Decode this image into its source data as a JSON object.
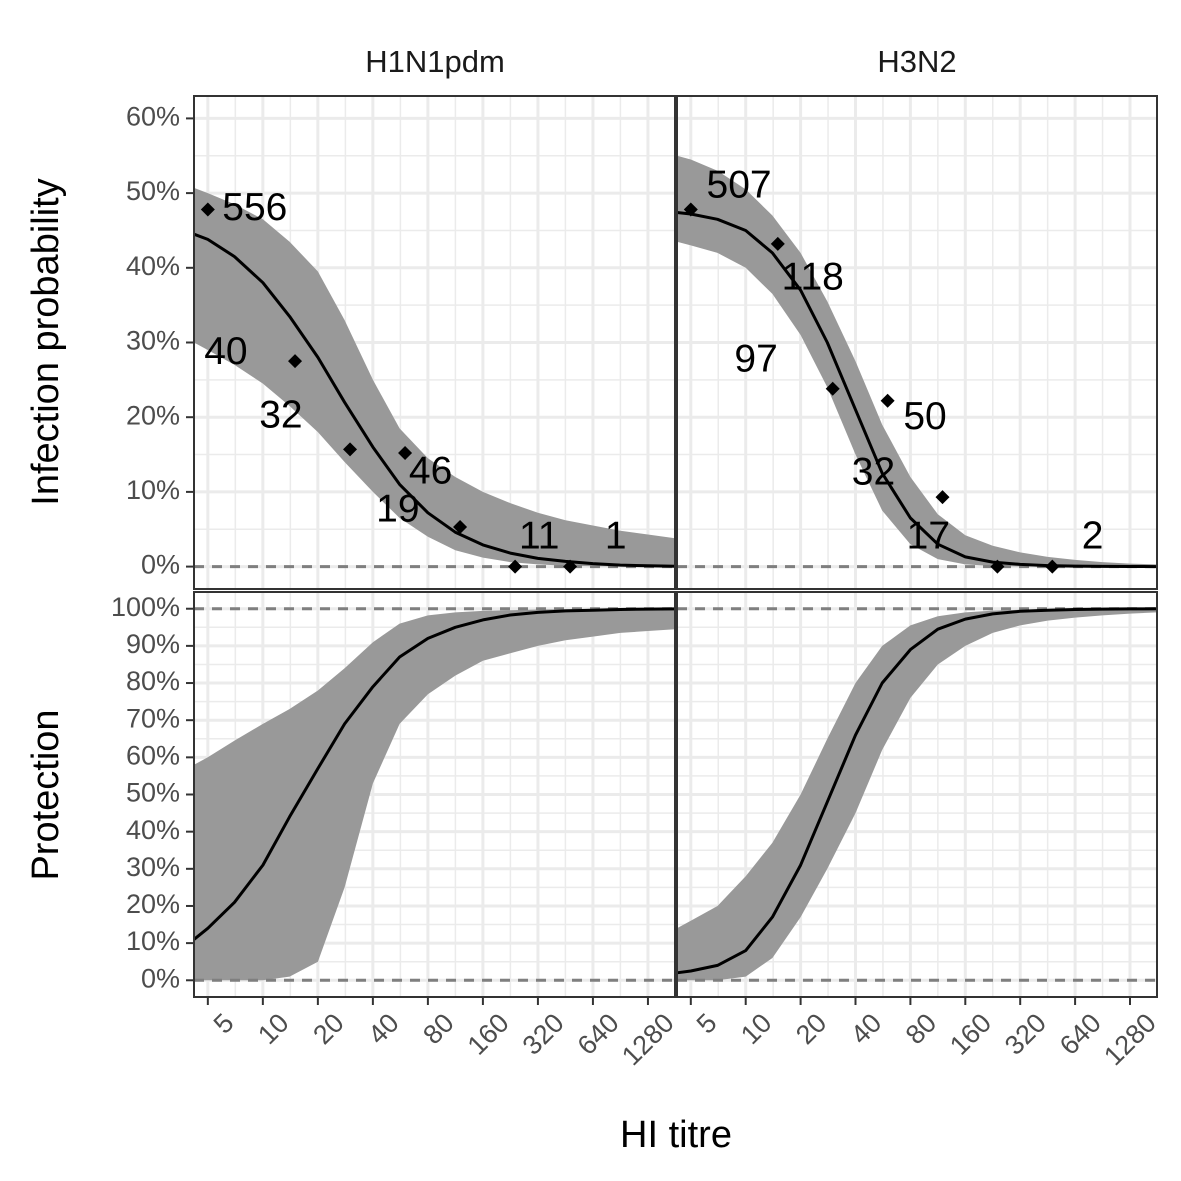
{
  "chart_data": {
    "type": "line",
    "facets": [
      "H1N1pdm",
      "H3N2"
    ],
    "xlabel": "HI titre",
    "x_scale": "log2",
    "x_ticks": [
      5,
      10,
      20,
      40,
      80,
      160,
      320,
      640,
      1280
    ],
    "x_tick_labels": [
      "5",
      "10",
      "20",
      "40",
      "80",
      "160",
      "320",
      "640",
      "1280"
    ],
    "xlim": [
      4.2,
      1800
    ],
    "panels": [
      {
        "row": "infection",
        "ylabel": "Infection probability",
        "ylim": [
          -0.03,
          0.63
        ],
        "y_ticks": [
          0,
          0.1,
          0.2,
          0.3,
          0.4,
          0.5,
          0.6
        ],
        "y_tick_labels": [
          "0%",
          "10%",
          "20%",
          "30%",
          "40%",
          "50%",
          "60%"
        ],
        "reference_lines": [
          0
        ],
        "series": [
          {
            "facet": "H1N1pdm",
            "curve_x": [
              4.2,
              5,
              7,
              10,
              14,
              20,
              28,
              40,
              56,
              80,
              113,
              160,
              226,
              320,
              453,
              640,
              905,
              1280,
              1800
            ],
            "fit": [
              0.445,
              0.438,
              0.415,
              0.38,
              0.335,
              0.28,
              0.22,
              0.16,
              0.11,
              0.072,
              0.046,
              0.029,
              0.018,
              0.011,
              0.007,
              0.004,
              0.002,
              0.001,
              0.0005
            ],
            "lower": [
              0.3,
              0.29,
              0.27,
              0.245,
              0.215,
              0.18,
              0.14,
              0.1,
              0.065,
              0.04,
              0.022,
              0.012,
              0.006,
              0.003,
              0.001,
              0.0005,
              0.0002,
              0.0001,
              0.0
            ],
            "upper": [
              0.507,
              0.5,
              0.485,
              0.465,
              0.435,
              0.395,
              0.33,
              0.25,
              0.185,
              0.145,
              0.12,
              0.1,
              0.085,
              0.072,
              0.062,
              0.055,
              0.048,
              0.043,
              0.038
            ],
            "points": [
              {
                "x": 5,
                "y": 0.478,
                "n": "556",
                "lx": 1.2,
                "ly": 0.478
              },
              {
                "x": 15,
                "y": 0.275,
                "n": "40",
                "lx": 0.55,
                "ly": 0.285
              },
              {
                "x": 30,
                "y": 0.157,
                "n": "32",
                "lx": 0.55,
                "ly": 0.2
              },
              {
                "x": 60,
                "y": 0.152,
                "n": "46",
                "lx": 1.05,
                "ly": 0.125
              },
              {
                "x": 120,
                "y": 0.053,
                "n": "19",
                "lx": 0.6,
                "ly": 0.074
              },
              {
                "x": 240,
                "y": 0.0,
                "n": "11",
                "lx": 1.05,
                "ly": 0.038
              },
              {
                "x": 480,
                "y": 0.0,
                "n": "1",
                "lx": 1.55,
                "ly": 0.038
              }
            ]
          },
          {
            "facet": "H3N2",
            "curve_x": [
              4.2,
              5,
              7,
              10,
              14,
              20,
              28,
              40,
              56,
              80,
              113,
              160,
              226,
              320,
              453,
              640,
              905,
              1280,
              1800
            ],
            "fit": [
              0.474,
              0.472,
              0.465,
              0.45,
              0.42,
              0.37,
              0.3,
              0.21,
              0.125,
              0.065,
              0.03,
              0.013,
              0.006,
              0.003,
              0.0013,
              0.0006,
              0.0003,
              0.0001,
              0.0
            ],
            "lower": [
              0.435,
              0.43,
              0.42,
              0.4,
              0.365,
              0.31,
              0.24,
              0.15,
              0.075,
              0.03,
              0.01,
              0.003,
              0.0008,
              0.0002,
              0.0,
              0.0,
              0.0,
              0.0,
              0.0
            ],
            "upper": [
              0.55,
              0.545,
              0.53,
              0.505,
              0.47,
              0.42,
              0.355,
              0.275,
              0.19,
              0.12,
              0.07,
              0.042,
              0.028,
              0.019,
              0.013,
              0.009,
              0.006,
              0.004,
              0.003
            ],
            "points": [
              {
                "x": 5,
                "y": 0.478,
                "n": "507",
                "lx": 1.22,
                "ly": 0.508
              },
              {
                "x": 15,
                "y": 0.432,
                "n": "118",
                "lx": 1.05,
                "ly": 0.385
              },
              {
                "x": 30,
                "y": 0.238,
                "n": "97",
                "lx": 0.5,
                "ly": 0.275
              },
              {
                "x": 60,
                "y": 0.222,
                "n": "50",
                "lx": 1.22,
                "ly": 0.198
              },
              {
                "x": 120,
                "y": 0.093,
                "n": "32",
                "lx": 0.55,
                "ly": 0.124
              },
              {
                "x": 240,
                "y": 0.0,
                "n": "17",
                "lx": 0.55,
                "ly": 0.038
              },
              {
                "x": 480,
                "y": 0.0,
                "n": "2",
                "lx": 1.45,
                "ly": 0.038
              }
            ]
          }
        ]
      },
      {
        "row": "protection",
        "ylabel": "Protection",
        "ylim": [
          -0.045,
          1.045
        ],
        "y_ticks": [
          0,
          0.1,
          0.2,
          0.3,
          0.4,
          0.5,
          0.6,
          0.7,
          0.8,
          0.9,
          1.0
        ],
        "y_tick_labels": [
          "0%",
          "10%",
          "20%",
          "30%",
          "40%",
          "50%",
          "60%",
          "70%",
          "80%",
          "90%",
          "100%"
        ],
        "reference_lines": [
          0,
          1
        ],
        "series": [
          {
            "facet": "H1N1pdm",
            "curve_x": [
              4.2,
              5,
              7,
              10,
              14,
              20,
              28,
              40,
              56,
              80,
              113,
              160,
              226,
              320,
              453,
              640,
              905,
              1280,
              1800
            ],
            "fit": [
              0.11,
              0.14,
              0.21,
              0.31,
              0.44,
              0.57,
              0.69,
              0.79,
              0.87,
              0.92,
              0.95,
              0.97,
              0.983,
              0.99,
              0.994,
              0.996,
              0.998,
              0.999,
              0.9995
            ],
            "lower": [
              0.0,
              0.0,
              0.0,
              0.0,
              0.01,
              0.05,
              0.25,
              0.53,
              0.69,
              0.77,
              0.82,
              0.86,
              0.88,
              0.9,
              0.915,
              0.925,
              0.935,
              0.94,
              0.945
            ],
            "upper": [
              0.58,
              0.6,
              0.645,
              0.69,
              0.73,
              0.78,
              0.84,
              0.91,
              0.96,
              0.982,
              0.99,
              0.994,
              0.996,
              0.998,
              0.999,
              0.9995,
              0.9998,
              0.9999,
              1.0
            ]
          },
          {
            "facet": "H3N2",
            "curve_x": [
              4.2,
              5,
              7,
              10,
              14,
              20,
              28,
              40,
              56,
              80,
              113,
              160,
              226,
              320,
              453,
              640,
              905,
              1280,
              1800
            ],
            "fit": [
              0.02,
              0.025,
              0.04,
              0.08,
              0.17,
              0.31,
              0.48,
              0.66,
              0.8,
              0.89,
              0.945,
              0.972,
              0.986,
              0.993,
              0.996,
              0.998,
              0.999,
              0.9995,
              0.9998
            ],
            "lower": [
              0.0,
              0.0,
              0.0,
              0.01,
              0.06,
              0.17,
              0.3,
              0.45,
              0.62,
              0.76,
              0.85,
              0.9,
              0.935,
              0.955,
              0.968,
              0.976,
              0.982,
              0.987,
              0.99
            ],
            "upper": [
              0.14,
              0.16,
              0.2,
              0.28,
              0.37,
              0.5,
              0.65,
              0.8,
              0.9,
              0.955,
              0.98,
              0.99,
              0.995,
              0.997,
              0.998,
              0.999,
              0.9995,
              0.9998,
              1.0
            ]
          }
        ]
      }
    ],
    "colors": {
      "ribbon": "#999999",
      "line": "#000000",
      "point": "#000000",
      "reference_line": "#7f7f7f",
      "grid_major": "#ebebeb",
      "grid_minor": "#ebebeb",
      "strip_bg": "#ffffff",
      "panel_border": "#333333"
    },
    "grid": true,
    "legend": "none"
  }
}
